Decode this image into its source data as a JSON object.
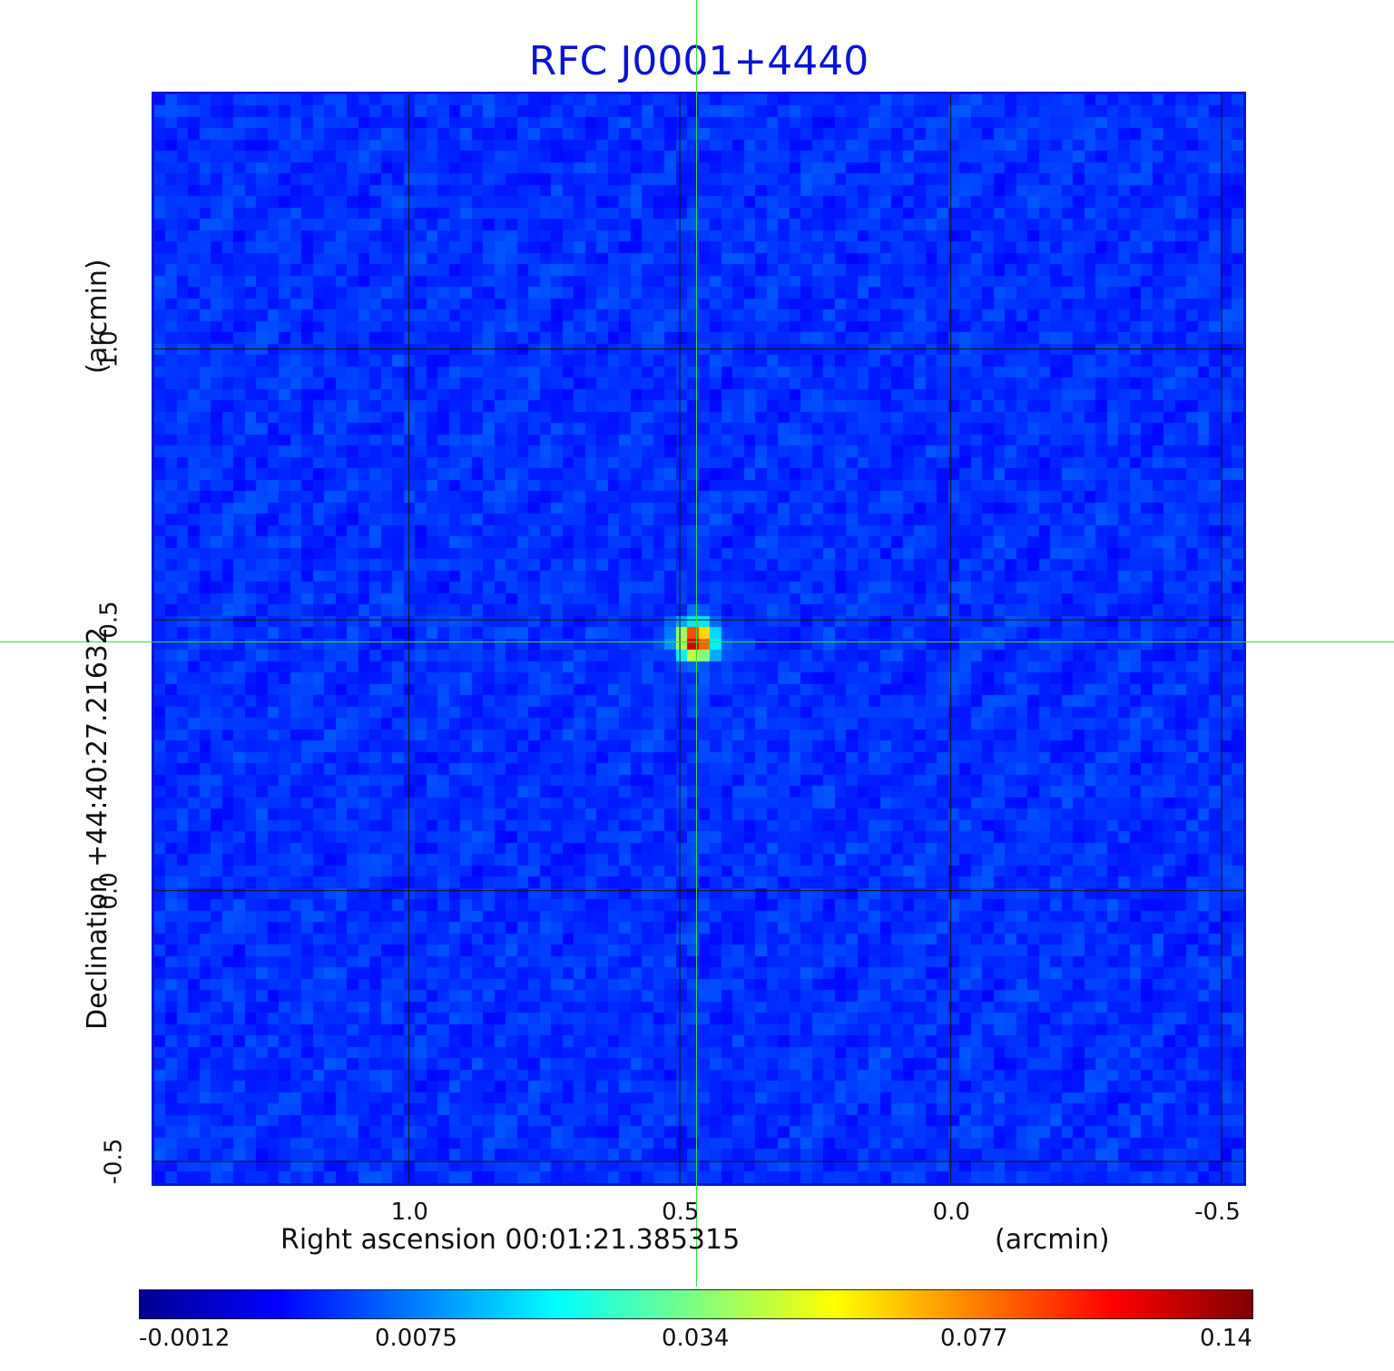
{
  "chart_data": {
    "type": "heatmap",
    "title": "RFC J0001+4440",
    "xlabel": "Right ascension  00:01:21.385315",
    "xunit": "(arcmin)",
    "ylabel": "Declination  +44:40:27.21632",
    "yunit": "(arcmin)",
    "xlim": [
      1.47,
      -0.54
    ],
    "ylim": [
      -0.54,
      1.47
    ],
    "x_ticks": [
      "1.0",
      "0.5",
      "0.0",
      "-0.5"
    ],
    "x_tick_values": [
      1.0,
      0.5,
      0.0,
      -0.5
    ],
    "y_ticks": [
      "-0.5",
      "0.0",
      "0.5",
      "1.0"
    ],
    "y_tick_values": [
      -0.5,
      0.0,
      0.5,
      1.0
    ],
    "grid": true,
    "crosshair": {
      "x": 0.47,
      "y": 0.46
    },
    "source_peak": {
      "x": 0.47,
      "y": 0.46,
      "value": 0.14
    },
    "colorbar": {
      "ticks": [
        "-0.0012",
        "0.0075",
        "0.034",
        "0.077",
        "0.14"
      ],
      "colormap": [
        "#00008f",
        "#0000ff",
        "#0080ff",
        "#00ffff",
        "#80ff80",
        "#ffff00",
        "#ff8000",
        "#ff0000",
        "#800000"
      ]
    },
    "colors": {
      "title": "#0b14d4",
      "frame": "#0a17d8",
      "background": "#1747ee",
      "crosshair": "#28e632"
    }
  }
}
